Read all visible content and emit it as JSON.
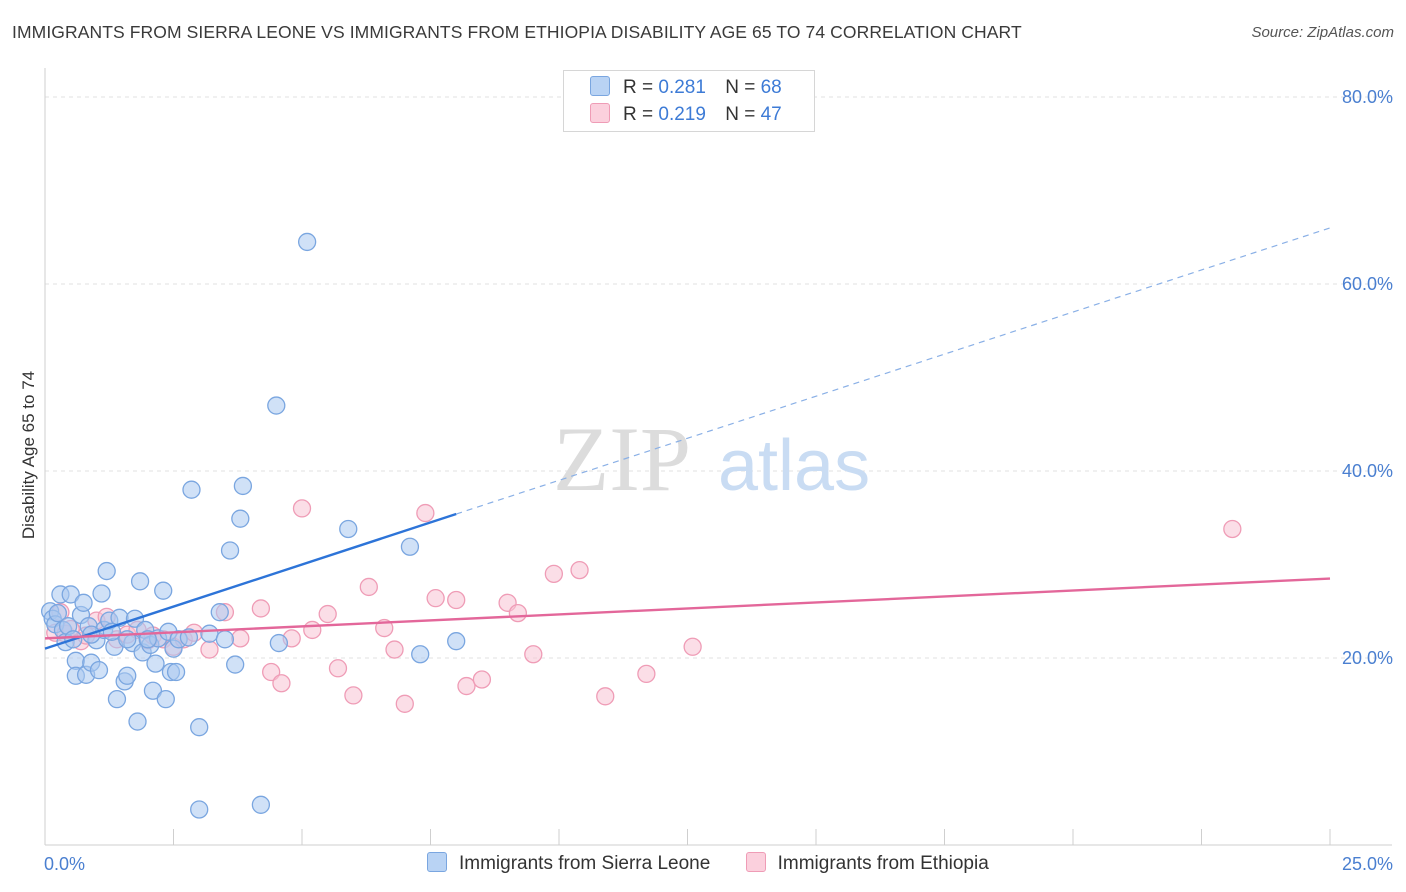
{
  "header": {
    "title": "IMMIGRANTS FROM SIERRA LEONE VS IMMIGRANTS FROM ETHIOPIA DISABILITY AGE 65 TO 74 CORRELATION CHART",
    "source": "Source: ZipAtlas.com"
  },
  "watermark": {
    "zip": "ZIP",
    "atlas": "atlas"
  },
  "legend": {
    "rows": [
      {
        "r_label": "R =",
        "r_value": "0.281",
        "n_label": "N =",
        "n_value": "68"
      },
      {
        "r_label": "R =",
        "r_value": "0.219",
        "n_label": "N =",
        "n_value": "47"
      }
    ]
  },
  "bottom_legend": {
    "items": [
      "Immigrants from Sierra Leone",
      "Immigrants from Ethiopia"
    ]
  },
  "colors": {
    "blue_fill": "#a9c8f0",
    "blue_stroke": "#7aa6e0",
    "blue_line": "#2d74d8",
    "pink_fill": "#f7c3d3",
    "pink_stroke": "#ef9cb6",
    "pink_line": "#e3679a",
    "grid": "#e2e2e2",
    "tick_text": "#4a7fd0"
  },
  "chart_data": {
    "type": "scatter",
    "title": "IMMIGRANTS FROM SIERRA LEONE VS IMMIGRANTS FROM ETHIOPIA DISABILITY AGE 65 TO 74 CORRELATION CHART",
    "xlabel": "",
    "ylabel": "Disability Age 65 to 74",
    "xlim": [
      0,
      25
    ],
    "ylim": [
      0,
      80
    ],
    "x_tick_labels": [
      "0.0%",
      "25.0%"
    ],
    "y_ticks": [
      20,
      40,
      60,
      80
    ],
    "y_tick_labels": [
      "20.0%",
      "40.0%",
      "60.0%",
      "80.0%"
    ],
    "grid": true,
    "series": [
      {
        "name": "Immigrants from Sierra Leone",
        "R": 0.281,
        "N": 68,
        "points": [
          [
            0.1,
            25.0
          ],
          [
            0.15,
            24.2
          ],
          [
            0.2,
            23.6
          ],
          [
            0.25,
            24.8
          ],
          [
            0.3,
            26.8
          ],
          [
            0.35,
            23.0
          ],
          [
            0.4,
            21.7
          ],
          [
            0.45,
            23.4
          ],
          [
            0.5,
            26.8
          ],
          [
            0.55,
            22.0
          ],
          [
            0.6,
            19.7
          ],
          [
            0.6,
            18.1
          ],
          [
            0.7,
            24.6
          ],
          [
            0.75,
            25.9
          ],
          [
            0.8,
            18.2
          ],
          [
            0.85,
            23.4
          ],
          [
            0.9,
            19.5
          ],
          [
            1.0,
            21.9
          ],
          [
            1.05,
            18.7
          ],
          [
            1.1,
            26.9
          ],
          [
            1.15,
            23.0
          ],
          [
            1.2,
            29.3
          ],
          [
            1.25,
            24.0
          ],
          [
            1.35,
            21.2
          ],
          [
            1.4,
            15.6
          ],
          [
            1.45,
            24.3
          ],
          [
            1.55,
            17.5
          ],
          [
            1.6,
            18.1
          ],
          [
            1.7,
            21.6
          ],
          [
            1.75,
            24.2
          ],
          [
            1.8,
            13.2
          ],
          [
            1.85,
            28.2
          ],
          [
            1.9,
            20.6
          ],
          [
            1.95,
            23.0
          ],
          [
            2.05,
            21.4
          ],
          [
            2.1,
            16.5
          ],
          [
            2.15,
            19.4
          ],
          [
            2.2,
            22.1
          ],
          [
            2.3,
            27.2
          ],
          [
            2.35,
            15.6
          ],
          [
            2.4,
            22.8
          ],
          [
            2.45,
            18.5
          ],
          [
            2.5,
            21.0
          ],
          [
            2.55,
            18.5
          ],
          [
            2.6,
            22.0
          ],
          [
            2.8,
            22.2
          ],
          [
            2.85,
            38.0
          ],
          [
            3.0,
            12.6
          ],
          [
            3.0,
            3.8
          ],
          [
            3.2,
            22.6
          ],
          [
            3.4,
            24.9
          ],
          [
            3.5,
            22.0
          ],
          [
            3.6,
            31.5
          ],
          [
            3.7,
            19.3
          ],
          [
            3.8,
            34.9
          ],
          [
            3.85,
            38.4
          ],
          [
            4.2,
            4.3
          ],
          [
            4.5,
            47.0
          ],
          [
            4.55,
            21.6
          ],
          [
            5.1,
            64.5
          ],
          [
            5.9,
            33.8
          ],
          [
            7.1,
            31.9
          ],
          [
            7.3,
            20.4
          ],
          [
            8.0,
            21.8
          ],
          [
            1.6,
            22.0
          ],
          [
            0.9,
            22.5
          ],
          [
            2.0,
            22.0
          ],
          [
            1.3,
            22.8
          ]
        ],
        "trend_solid": [
          [
            0.0,
            21.0
          ],
          [
            8.0,
            35.4
          ]
        ],
        "trend_dashed": [
          [
            8.0,
            35.4
          ],
          [
            25.0,
            66.0
          ]
        ]
      },
      {
        "name": "Immigrants from Ethiopia",
        "R": 0.219,
        "N": 47,
        "points": [
          [
            0.2,
            22.7
          ],
          [
            0.3,
            24.9
          ],
          [
            0.4,
            22.6
          ],
          [
            0.5,
            23.1
          ],
          [
            0.7,
            21.8
          ],
          [
            0.8,
            22.4
          ],
          [
            1.0,
            24.0
          ],
          [
            1.2,
            24.4
          ],
          [
            1.4,
            22.0
          ],
          [
            1.6,
            22.5
          ],
          [
            1.8,
            23.0
          ],
          [
            2.0,
            21.9
          ],
          [
            2.1,
            22.4
          ],
          [
            2.3,
            22.0
          ],
          [
            2.5,
            21.2
          ],
          [
            2.7,
            22.0
          ],
          [
            2.9,
            22.7
          ],
          [
            3.2,
            20.9
          ],
          [
            3.5,
            24.9
          ],
          [
            3.8,
            22.1
          ],
          [
            4.2,
            25.3
          ],
          [
            4.4,
            18.5
          ],
          [
            4.6,
            17.3
          ],
          [
            4.8,
            22.1
          ],
          [
            5.0,
            36.0
          ],
          [
            5.2,
            23.0
          ],
          [
            5.5,
            24.7
          ],
          [
            5.7,
            18.9
          ],
          [
            6.0,
            16.0
          ],
          [
            6.3,
            27.6
          ],
          [
            6.6,
            23.2
          ],
          [
            6.8,
            20.9
          ],
          [
            7.0,
            15.1
          ],
          [
            7.4,
            35.5
          ],
          [
            7.6,
            26.4
          ],
          [
            8.0,
            26.2
          ],
          [
            8.2,
            17.0
          ],
          [
            8.5,
            17.7
          ],
          [
            9.0,
            25.9
          ],
          [
            9.2,
            24.8
          ],
          [
            9.5,
            20.4
          ],
          [
            9.9,
            29.0
          ],
          [
            10.4,
            29.4
          ],
          [
            10.9,
            15.9
          ],
          [
            11.7,
            18.3
          ],
          [
            12.6,
            21.2
          ],
          [
            23.1,
            33.8
          ]
        ],
        "trend_solid": [
          [
            0.0,
            22.1
          ],
          [
            25.0,
            28.5
          ]
        ]
      }
    ]
  }
}
